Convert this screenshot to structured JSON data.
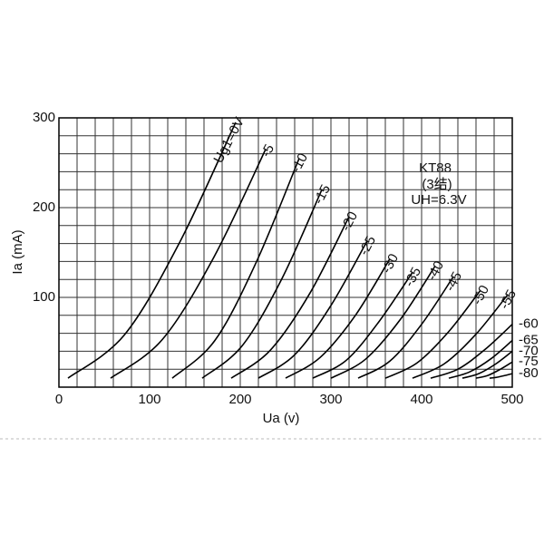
{
  "chart_data": {
    "type": "line",
    "annotations": [
      "KT88",
      "(3结)",
      "UH=6.3V"
    ],
    "xlabel": "Ua (v)",
    "ylabel": "Ia (mA)",
    "xlim": [
      0,
      500
    ],
    "ylim": [
      0,
      300
    ],
    "xticks": [
      0,
      100,
      200,
      300,
      400,
      500
    ],
    "yticks": [
      100,
      200,
      300
    ],
    "x_gridlines": [
      0,
      20,
      40,
      60,
      80,
      100,
      120,
      140,
      160,
      180,
      200,
      220,
      240,
      260,
      280,
      300,
      320,
      340,
      360,
      380,
      400,
      420,
      440,
      460,
      480,
      500
    ],
    "y_gridlines": [
      0,
      20,
      40,
      60,
      80,
      100,
      120,
      140,
      160,
      180,
      200,
      220,
      240,
      260,
      280,
      300
    ],
    "grid": true,
    "color": "#000000",
    "series": [
      {
        "name": "Ug1=0V",
        "x": [
          10,
          72,
          133,
          195
        ],
        "values": [
          10,
          58,
          161,
          295
        ]
      },
      {
        "name": "-5",
        "x": [
          57,
          114,
          171,
          228
        ],
        "values": [
          10,
          53,
          145,
          265
        ]
      },
      {
        "name": "-10",
        "x": [
          125,
          172,
          218,
          265
        ],
        "values": [
          10,
          52,
          140,
          255
        ]
      },
      {
        "name": "-15",
        "x": [
          158,
          202,
          246,
          290
        ],
        "values": [
          10,
          46,
          121,
          220
        ]
      },
      {
        "name": "-20",
        "x": [
          190,
          233,
          277,
          320
        ],
        "values": [
          10,
          41,
          105,
          190
        ]
      },
      {
        "name": "-25",
        "x": [
          220,
          260,
          300,
          340
        ],
        "values": [
          10,
          36,
          91,
          163
        ]
      },
      {
        "name": "-30",
        "x": [
          250,
          288,
          327,
          365
        ],
        "values": [
          10,
          33,
          80,
          143
        ]
      },
      {
        "name": "-35",
        "x": [
          280,
          317,
          353,
          390
        ],
        "values": [
          10,
          30,
          73,
          128
        ]
      },
      {
        "name": "-40",
        "x": [
          300,
          338,
          377,
          415
        ],
        "values": [
          10,
          31,
          76,
          135
        ]
      },
      {
        "name": "-45",
        "x": [
          330,
          365,
          400,
          435
        ],
        "values": [
          10,
          29,
          70,
          123
        ]
      },
      {
        "name": "-50",
        "x": [
          360,
          395,
          430,
          465
        ],
        "values": [
          10,
          27,
          62,
          108
        ]
      },
      {
        "name": "-55",
        "x": [
          390,
          425,
          460,
          495
        ],
        "values": [
          10,
          26,
          59,
          103
        ]
      },
      {
        "name": "-60",
        "x": [
          410,
          440,
          470,
          500
        ],
        "values": [
          10,
          20,
          42,
          70
        ]
      },
      {
        "name": "-65",
        "x": [
          430,
          453,
          477,
          500
        ],
        "values": [
          10,
          17,
          32,
          52
        ]
      },
      {
        "name": "-70",
        "x": [
          445,
          463,
          482,
          500
        ],
        "values": [
          10,
          15,
          26,
          40
        ]
      },
      {
        "name": "-75",
        "x": [
          460,
          473,
          487,
          500
        ],
        "values": [
          10,
          13,
          20,
          28
        ]
      },
      {
        "name": "-80",
        "x": [
          475,
          483,
          492,
          500
        ],
        "values": [
          10,
          11,
          13,
          15
        ]
      }
    ]
  }
}
